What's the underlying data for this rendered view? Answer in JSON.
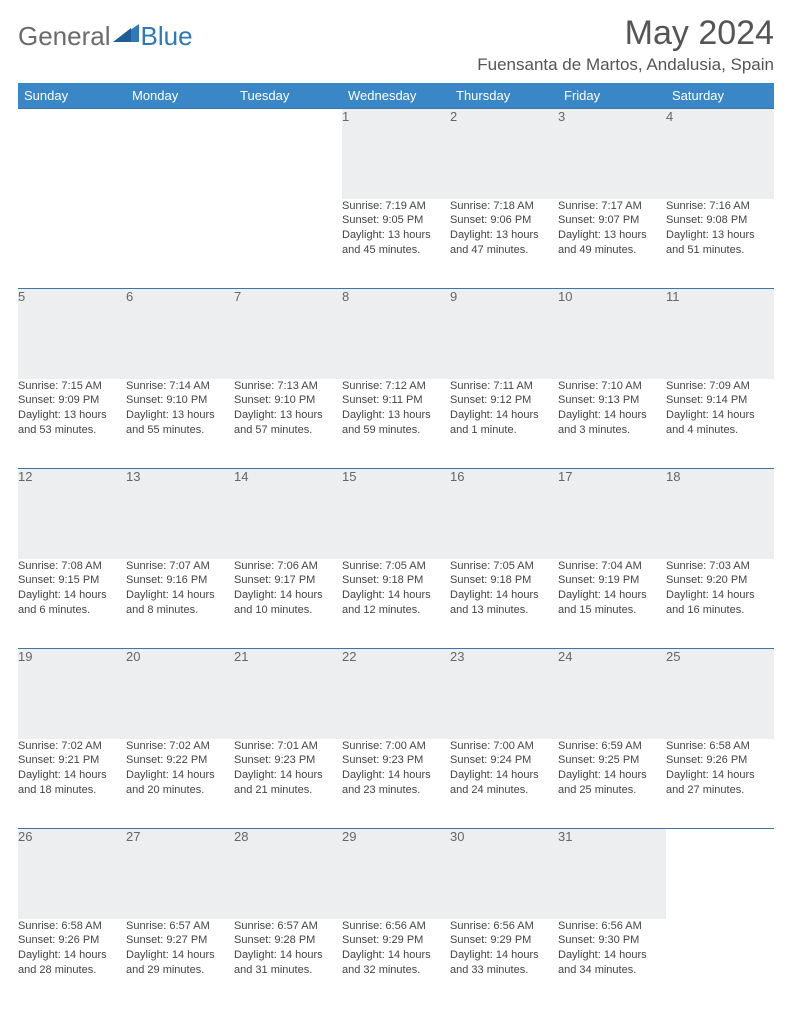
{
  "brand": {
    "part1": "General",
    "part2": "Blue"
  },
  "title": "May 2024",
  "location": "Fuensanta de Martos, Andalusia, Spain",
  "colors": {
    "header_bg": "#3a87c8",
    "header_text": "#ffffff",
    "daynum_bg": "#eceef0",
    "rule": "#2e6fa3",
    "brand_gray": "#6b6b6b",
    "brand_blue": "#2e79b7"
  },
  "weekdays": [
    "Sunday",
    "Monday",
    "Tuesday",
    "Wednesday",
    "Thursday",
    "Friday",
    "Saturday"
  ],
  "weeks": [
    [
      null,
      null,
      null,
      {
        "n": "1",
        "sr": "7:19 AM",
        "ss": "9:05 PM",
        "dl": "13 hours and 45 minutes."
      },
      {
        "n": "2",
        "sr": "7:18 AM",
        "ss": "9:06 PM",
        "dl": "13 hours and 47 minutes."
      },
      {
        "n": "3",
        "sr": "7:17 AM",
        "ss": "9:07 PM",
        "dl": "13 hours and 49 minutes."
      },
      {
        "n": "4",
        "sr": "7:16 AM",
        "ss": "9:08 PM",
        "dl": "13 hours and 51 minutes."
      }
    ],
    [
      {
        "n": "5",
        "sr": "7:15 AM",
        "ss": "9:09 PM",
        "dl": "13 hours and 53 minutes."
      },
      {
        "n": "6",
        "sr": "7:14 AM",
        "ss": "9:10 PM",
        "dl": "13 hours and 55 minutes."
      },
      {
        "n": "7",
        "sr": "7:13 AM",
        "ss": "9:10 PM",
        "dl": "13 hours and 57 minutes."
      },
      {
        "n": "8",
        "sr": "7:12 AM",
        "ss": "9:11 PM",
        "dl": "13 hours and 59 minutes."
      },
      {
        "n": "9",
        "sr": "7:11 AM",
        "ss": "9:12 PM",
        "dl": "14 hours and 1 minute."
      },
      {
        "n": "10",
        "sr": "7:10 AM",
        "ss": "9:13 PM",
        "dl": "14 hours and 3 minutes."
      },
      {
        "n": "11",
        "sr": "7:09 AM",
        "ss": "9:14 PM",
        "dl": "14 hours and 4 minutes."
      }
    ],
    [
      {
        "n": "12",
        "sr": "7:08 AM",
        "ss": "9:15 PM",
        "dl": "14 hours and 6 minutes."
      },
      {
        "n": "13",
        "sr": "7:07 AM",
        "ss": "9:16 PM",
        "dl": "14 hours and 8 minutes."
      },
      {
        "n": "14",
        "sr": "7:06 AM",
        "ss": "9:17 PM",
        "dl": "14 hours and 10 minutes."
      },
      {
        "n": "15",
        "sr": "7:05 AM",
        "ss": "9:18 PM",
        "dl": "14 hours and 12 minutes."
      },
      {
        "n": "16",
        "sr": "7:05 AM",
        "ss": "9:18 PM",
        "dl": "14 hours and 13 minutes."
      },
      {
        "n": "17",
        "sr": "7:04 AM",
        "ss": "9:19 PM",
        "dl": "14 hours and 15 minutes."
      },
      {
        "n": "18",
        "sr": "7:03 AM",
        "ss": "9:20 PM",
        "dl": "14 hours and 16 minutes."
      }
    ],
    [
      {
        "n": "19",
        "sr": "7:02 AM",
        "ss": "9:21 PM",
        "dl": "14 hours and 18 minutes."
      },
      {
        "n": "20",
        "sr": "7:02 AM",
        "ss": "9:22 PM",
        "dl": "14 hours and 20 minutes."
      },
      {
        "n": "21",
        "sr": "7:01 AM",
        "ss": "9:23 PM",
        "dl": "14 hours and 21 minutes."
      },
      {
        "n": "22",
        "sr": "7:00 AM",
        "ss": "9:23 PM",
        "dl": "14 hours and 23 minutes."
      },
      {
        "n": "23",
        "sr": "7:00 AM",
        "ss": "9:24 PM",
        "dl": "14 hours and 24 minutes."
      },
      {
        "n": "24",
        "sr": "6:59 AM",
        "ss": "9:25 PM",
        "dl": "14 hours and 25 minutes."
      },
      {
        "n": "25",
        "sr": "6:58 AM",
        "ss": "9:26 PM",
        "dl": "14 hours and 27 minutes."
      }
    ],
    [
      {
        "n": "26",
        "sr": "6:58 AM",
        "ss": "9:26 PM",
        "dl": "14 hours and 28 minutes."
      },
      {
        "n": "27",
        "sr": "6:57 AM",
        "ss": "9:27 PM",
        "dl": "14 hours and 29 minutes."
      },
      {
        "n": "28",
        "sr": "6:57 AM",
        "ss": "9:28 PM",
        "dl": "14 hours and 31 minutes."
      },
      {
        "n": "29",
        "sr": "6:56 AM",
        "ss": "9:29 PM",
        "dl": "14 hours and 32 minutes."
      },
      {
        "n": "30",
        "sr": "6:56 AM",
        "ss": "9:29 PM",
        "dl": "14 hours and 33 minutes."
      },
      {
        "n": "31",
        "sr": "6:56 AM",
        "ss": "9:30 PM",
        "dl": "14 hours and 34 minutes."
      },
      null
    ]
  ],
  "labels": {
    "sunrise": "Sunrise: ",
    "sunset": "Sunset: ",
    "daylight": "Daylight: "
  }
}
